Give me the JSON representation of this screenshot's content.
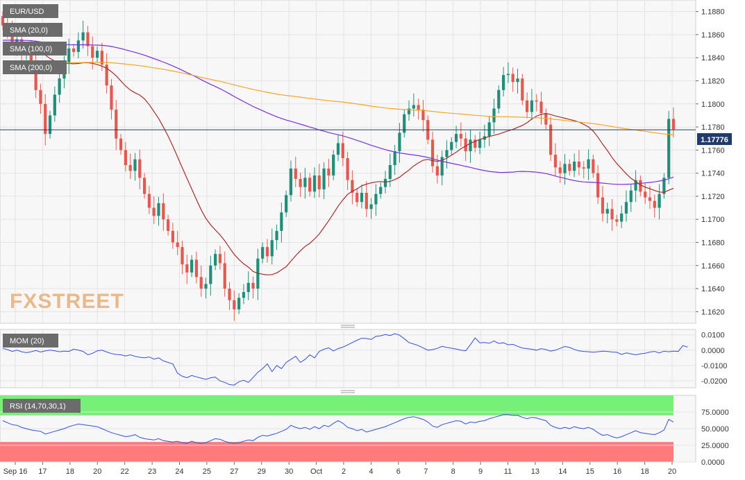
{
  "colors": {
    "up": "#1f8f7a",
    "down": "#e3584f",
    "sma20": "#a52a2a",
    "sma100": "#7a2fd8",
    "sma200": "#f5a623",
    "mom": "#2f4fd6",
    "rsi": "#2f4fd6",
    "rsi_top": "#77f077",
    "rsi_bottom": "#ff7a7a",
    "price_line": "#1f3a6b"
  },
  "legend": {
    "symbol": "EUR/USD",
    "sma20": "SMA (20,0)",
    "sma100": "SMA (100,0)",
    "sma200": "SMA (200,0)",
    "mom": "MOM (20)",
    "rsi": "RSI (14,70,30,1)"
  },
  "watermark": "FXSTREET",
  "current_price": "1.17776",
  "chart_data": [
    {
      "type": "candlestick",
      "title": "EUR/USD",
      "ylim": [
        1.161,
        1.189
      ],
      "y_ticks": [
        "1.1880",
        "1.1860",
        "1.1840",
        "1.1820",
        "1.1800",
        "1.1780",
        "1.1760",
        "1.1740",
        "1.1720",
        "1.1700",
        "1.1680",
        "1.1660",
        "1.1640",
        "1.1620"
      ],
      "x_ticks": [
        "Sep 16",
        "17",
        "18",
        "20",
        "22",
        "23",
        "24",
        "25",
        "27",
        "29",
        "30",
        "Oct",
        "2",
        "4",
        "6",
        "7",
        "8",
        "9",
        "11",
        "13",
        "14",
        "15",
        "16",
        "18",
        "20"
      ],
      "close": [
        1.1868,
        1.1862,
        1.185,
        1.1856,
        1.1842,
        1.1848,
        1.1835,
        1.1812,
        1.18,
        1.1774,
        1.179,
        1.1808,
        1.1822,
        1.1836,
        1.1848,
        1.1845,
        1.1855,
        1.1862,
        1.185,
        1.184,
        1.1846,
        1.1834,
        1.1816,
        1.1795,
        1.177,
        1.176,
        1.1747,
        1.1742,
        1.1752,
        1.1736,
        1.1722,
        1.171,
        1.1703,
        1.1714,
        1.17,
        1.169,
        1.168,
        1.1676,
        1.1661,
        1.1654,
        1.1665,
        1.165,
        1.164,
        1.1644,
        1.166,
        1.167,
        1.1662,
        1.164,
        1.163,
        1.1622,
        1.1632,
        1.1637,
        1.1645,
        1.164,
        1.1666,
        1.1676,
        1.1668,
        1.1682,
        1.169,
        1.1706,
        1.1721,
        1.1744,
        1.1735,
        1.1728,
        1.1736,
        1.1724,
        1.1738,
        1.1726,
        1.1744,
        1.1738,
        1.1756,
        1.1766,
        1.1753,
        1.1734,
        1.1723,
        1.1715,
        1.1723,
        1.1709,
        1.1713,
        1.1722,
        1.1728,
        1.1735,
        1.1747,
        1.1759,
        1.1775,
        1.1791,
        1.1796,
        1.1799,
        1.1795,
        1.1786,
        1.1769,
        1.1746,
        1.1738,
        1.1754,
        1.176,
        1.1767,
        1.1774,
        1.177,
        1.1759,
        1.1769,
        1.1762,
        1.1769,
        1.1772,
        1.1784,
        1.1796,
        1.1812,
        1.1825,
        1.1826,
        1.1819,
        1.1822,
        1.1803,
        1.1793,
        1.1803,
        1.1802,
        1.1792,
        1.1782,
        1.1756,
        1.1745,
        1.174,
        1.1748,
        1.1742,
        1.175,
        1.1745,
        1.1744,
        1.1752,
        1.174,
        1.1719,
        1.1705,
        1.1709,
        1.17,
        1.1698,
        1.1705,
        1.1715,
        1.1725,
        1.1734,
        1.1724,
        1.1719,
        1.1716,
        1.171,
        1.1722,
        1.1736,
        1.1787,
        1.1778
      ],
      "mom": [
        0.0012,
        0.0004,
        -0.0008,
        0.0,
        -0.001,
        -0.0016,
        -0.001,
        -0.0002,
        -0.0012,
        -0.0005,
        0.0,
        -0.0004,
        -0.001,
        -0.0006,
        -0.0008,
        0.0006,
        0.0,
        -0.0008,
        -0.003,
        -0.002,
        -0.0004,
        0.0,
        -0.0012,
        -0.0022,
        -0.0028,
        -0.003,
        -0.0038,
        -0.003,
        -0.004,
        -0.0046,
        -0.005,
        -0.0044,
        -0.0058,
        -0.005,
        -0.007,
        -0.008,
        -0.009,
        -0.015,
        -0.017,
        -0.018,
        -0.0165,
        -0.0174,
        -0.0182,
        -0.019,
        -0.018,
        -0.0176,
        -0.02,
        -0.021,
        -0.0224,
        -0.0228,
        -0.0206,
        -0.0196,
        -0.021,
        -0.0178,
        -0.0144,
        -0.012,
        -0.009,
        -0.014,
        -0.01,
        -0.012,
        -0.008,
        -0.006,
        -0.004,
        -0.008,
        -0.006,
        -0.003,
        -0.005,
        -0.0008,
        0.0006,
        0.0015,
        -0.0005,
        0.001,
        0.002,
        0.0034,
        0.005,
        0.0065,
        0.0078,
        0.0076,
        0.007,
        0.009,
        0.0094,
        0.0102,
        0.0095,
        0.0108,
        0.0098,
        0.0075,
        0.005,
        0.004,
        0.003,
        0.0014,
        0.0,
        0.0004,
        0.0012,
        0.0025,
        0.0018,
        0.0013,
        0.0007,
        0.0,
        -0.0004,
        0.0036,
        0.008,
        0.0048,
        0.005,
        0.0045,
        0.006,
        0.0044,
        0.0048,
        0.0035,
        0.0038,
        0.0025,
        0.0014,
        0.001,
        0.0006,
        0.0,
        0.001,
        0.0004,
        -0.0006,
        0.0,
        0.0012,
        0.0024,
        0.0018,
        0.0005,
        -0.0005,
        -0.0008,
        -0.001,
        -0.0013,
        -0.001,
        -0.0006,
        -0.0008,
        -0.0012,
        -0.0014,
        -0.0028,
        -0.0018,
        -0.0024,
        -0.003,
        -0.0024,
        -0.002,
        -0.0012,
        -0.0008,
        -0.0018,
        -0.0006,
        -0.001,
        -0.0006,
        -0.0008,
        0.003,
        0.002
      ],
      "rsi": [
        62,
        59,
        56,
        55,
        52,
        50,
        48,
        47,
        46,
        42,
        44,
        46,
        48,
        50,
        53,
        55,
        57,
        56,
        55,
        54,
        53,
        50,
        47,
        44,
        42,
        40,
        38,
        39,
        41,
        37,
        35,
        34,
        33,
        35,
        32,
        31,
        30,
        31,
        29,
        28,
        31,
        29,
        28,
        29,
        32,
        35,
        34,
        31,
        29,
        28,
        29,
        31,
        33,
        32,
        37,
        40,
        39,
        41,
        43,
        46,
        49,
        55,
        52,
        50,
        52,
        49,
        53,
        50,
        55,
        53,
        58,
        62,
        58,
        52,
        50,
        47,
        49,
        45,
        47,
        49,
        51,
        53,
        56,
        59,
        62,
        65,
        67,
        68,
        66,
        64,
        60,
        54,
        52,
        56,
        58,
        60,
        62,
        61,
        57,
        60,
        59,
        61,
        62,
        65,
        67,
        69,
        71,
        71,
        70,
        70,
        67,
        65,
        67,
        66,
        64,
        62,
        55,
        52,
        50,
        52,
        50,
        53,
        51,
        50,
        52,
        49,
        44,
        40,
        41,
        38,
        36,
        38,
        41,
        44,
        47,
        44,
        43,
        42,
        41,
        44,
        48,
        64,
        60
      ]
    }
  ]
}
